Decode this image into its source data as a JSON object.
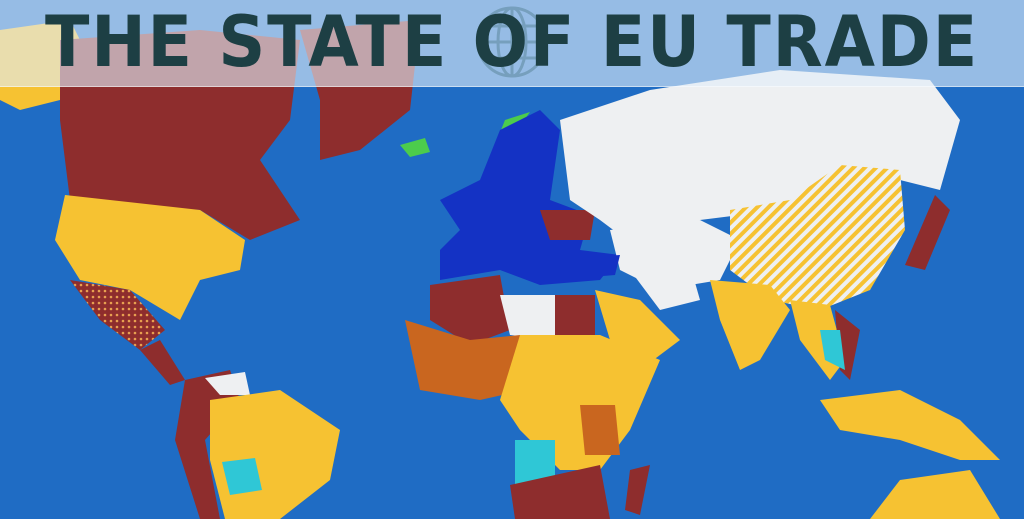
{
  "header": {
    "title": "THE STATE OF EU TRADE",
    "icon": "globe-icon"
  },
  "map": {
    "colors": {
      "ocean": "#1f6cc4",
      "eu": "#1432c4",
      "dark_red": "#8e2d2d",
      "yellow": "#f6c232",
      "orange": "#c9661f",
      "white": "#eef0f2",
      "cyan": "#2fc7d6",
      "green": "#4ccc4c",
      "hatched_yellow": "#f6c232"
    }
  }
}
